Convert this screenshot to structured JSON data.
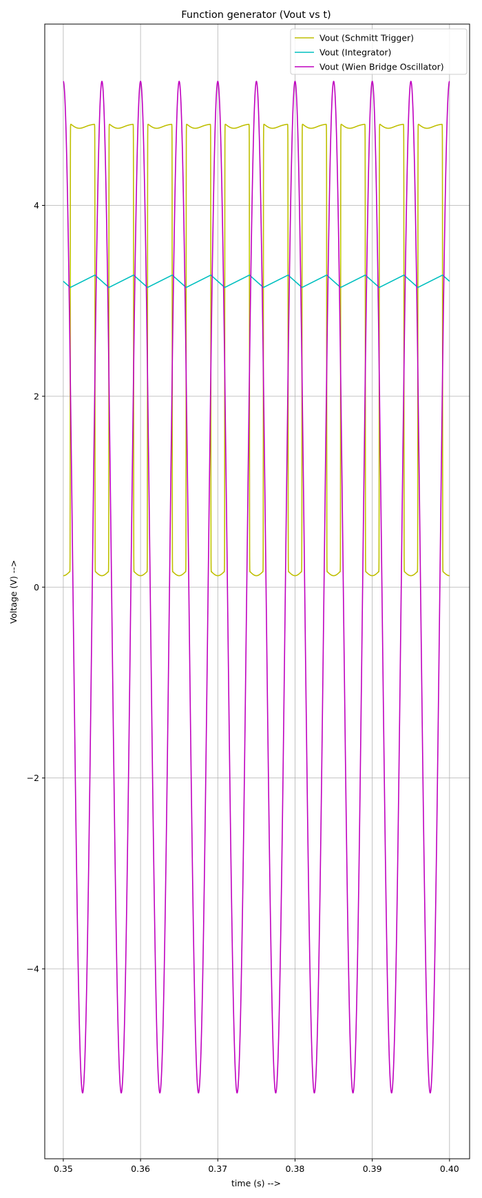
{
  "chart_data": {
    "type": "line",
    "title": "Function generator (Vout vs t)",
    "xlabel": "time (s) -->",
    "ylabel": "Voltage (V) -->",
    "xlim": [
      0.3476,
      0.4026
    ],
    "ylim": [
      -5.99,
      5.9
    ],
    "xticks": [
      0.35,
      0.36,
      0.37,
      0.38,
      0.39,
      0.4
    ],
    "xtick_labels": [
      "0.35",
      "0.36",
      "0.37",
      "0.38",
      "0.39",
      "0.40"
    ],
    "yticks": [
      -4,
      -2,
      0,
      2,
      4
    ],
    "ytick_labels": [
      "−4",
      "−2",
      "0",
      "2",
      "4"
    ],
    "grid": true,
    "legend": "top-right",
    "series": [
      {
        "name": "Vout (Schmitt Trigger)",
        "color": "#bfbf00",
        "waveform": "square",
        "period_s": 0.005,
        "high_v": 4.85,
        "low_v": 0.16,
        "first_rising_edge_s": 0.3509
      },
      {
        "name": "Vout (Integrator)",
        "color": "#00bfbf",
        "waveform": "triangle",
        "period_s": 0.005,
        "max_v": 3.27,
        "min_v": 3.14,
        "first_min_s": 0.3509
      },
      {
        "name": "Vout (Wien Bridge Oscillator)",
        "color": "#bf00bf",
        "waveform": "sine",
        "period_s": 0.005,
        "amplitude_v": 5.3,
        "first_peak_s": 0.355,
        "start_v": 5.28,
        "end_v": 4.8
      }
    ]
  }
}
